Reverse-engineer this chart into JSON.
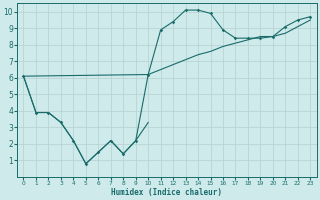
{
  "xlabel": "Humidex (Indice chaleur)",
  "bg_color": "#ceeaea",
  "grid_color": "#b8d4d4",
  "line_color": "#1a6b6b",
  "xlim": [
    -0.5,
    23.5
  ],
  "ylim": [
    0,
    10.5
  ],
  "xticks": [
    0,
    1,
    2,
    3,
    4,
    5,
    6,
    7,
    8,
    9,
    10,
    11,
    12,
    13,
    14,
    15,
    16,
    17,
    18,
    19,
    20,
    21,
    22,
    23
  ],
  "yticks": [
    1,
    2,
    3,
    4,
    5,
    6,
    7,
    8,
    9,
    10
  ],
  "line_jagged_x": [
    0,
    1,
    2,
    3,
    4,
    5,
    6,
    7,
    8,
    9,
    10
  ],
  "line_jagged_y": [
    6.1,
    3.9,
    3.9,
    3.3,
    2.2,
    0.8,
    1.5,
    2.2,
    1.4,
    2.2,
    3.3
  ],
  "line_peak_x": [
    0,
    1,
    2,
    3,
    4,
    5,
    6,
    7,
    8,
    9,
    10,
    11,
    12,
    13,
    14,
    15,
    16,
    17,
    18,
    19,
    20,
    21,
    22,
    23
  ],
  "line_peak_y": [
    6.1,
    3.9,
    3.9,
    3.3,
    2.2,
    0.8,
    1.5,
    2.2,
    1.4,
    2.2,
    6.2,
    8.9,
    9.4,
    10.1,
    10.1,
    9.9,
    8.9,
    8.4,
    8.4,
    8.4,
    8.5,
    9.1,
    9.5,
    9.7
  ],
  "line_diag_x": [
    0,
    10,
    11,
    12,
    13,
    14,
    15,
    16,
    17,
    18,
    19,
    20,
    21,
    22,
    23
  ],
  "line_diag_y": [
    6.1,
    6.2,
    6.5,
    6.8,
    7.1,
    7.4,
    7.6,
    7.9,
    8.1,
    8.3,
    8.5,
    8.5,
    8.7,
    9.1,
    9.5
  ],
  "marker_x": [
    0,
    1,
    2,
    3,
    4,
    5,
    6,
    7,
    8,
    9,
    10,
    11,
    12,
    13,
    14,
    15,
    16,
    17,
    18,
    19,
    20,
    21,
    22,
    23
  ],
  "marker_y": [
    6.1,
    3.9,
    3.9,
    3.3,
    2.2,
    0.8,
    1.5,
    2.2,
    1.4,
    2.2,
    6.2,
    8.9,
    9.4,
    10.1,
    10.1,
    9.9,
    8.9,
    8.4,
    8.4,
    8.4,
    8.5,
    9.1,
    9.5,
    9.7
  ]
}
